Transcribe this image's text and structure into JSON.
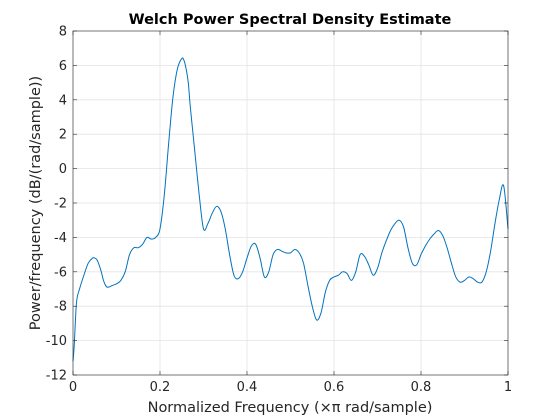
{
  "chart_data": {
    "type": "line",
    "title": "Welch Power Spectral Density Estimate",
    "xlabel": "Normalized Frequency  (×π rad/sample)",
    "ylabel": "Power/frequency (dB/(rad/sample))",
    "xlim": [
      0,
      1
    ],
    "ylim": [
      -12,
      8
    ],
    "xticks": [
      0,
      0.2,
      0.4,
      0.6,
      0.8,
      1
    ],
    "yticks": [
      -12,
      -10,
      -8,
      -6,
      -4,
      -2,
      0,
      2,
      4,
      6,
      8
    ],
    "xtick_labels": [
      "0",
      "0.2",
      "0.4",
      "0.6",
      "0.8",
      "1"
    ],
    "ytick_labels": [
      "-12",
      "-10",
      "-8",
      "-6",
      "-4",
      "-2",
      "0",
      "2",
      "4",
      "6",
      "8"
    ],
    "grid": true,
    "line_color": "#0072bd",
    "series": [
      {
        "x": [
          0,
          0.003,
          0.008,
          0.015,
          0.025,
          0.035,
          0.045,
          0.05,
          0.055,
          0.06,
          0.065,
          0.07,
          0.075,
          0.08,
          0.09,
          0.1,
          0.11,
          0.12,
          0.13,
          0.14,
          0.15,
          0.16,
          0.17,
          0.18,
          0.19,
          0.2,
          0.21,
          0.22,
          0.23,
          0.24,
          0.25,
          0.255,
          0.26,
          0.265,
          0.27,
          0.28,
          0.29,
          0.3,
          0.31,
          0.32,
          0.33,
          0.34,
          0.35,
          0.36,
          0.37,
          0.38,
          0.39,
          0.4,
          0.41,
          0.42,
          0.43,
          0.44,
          0.45,
          0.46,
          0.47,
          0.48,
          0.49,
          0.5,
          0.51,
          0.52,
          0.53,
          0.54,
          0.55,
          0.56,
          0.57,
          0.58,
          0.59,
          0.6,
          0.61,
          0.62,
          0.63,
          0.64,
          0.65,
          0.66,
          0.67,
          0.68,
          0.69,
          0.7,
          0.71,
          0.72,
          0.73,
          0.74,
          0.75,
          0.76,
          0.77,
          0.78,
          0.79,
          0.8,
          0.81,
          0.82,
          0.83,
          0.84,
          0.85,
          0.86,
          0.87,
          0.88,
          0.89,
          0.9,
          0.91,
          0.92,
          0.93,
          0.94,
          0.95,
          0.96,
          0.97,
          0.98,
          0.99,
          1
        ],
        "y": [
          -11.2,
          -10.2,
          -7.8,
          -7.0,
          -6.2,
          -5.5,
          -5.2,
          -5.2,
          -5.3,
          -5.6,
          -6.0,
          -6.5,
          -6.8,
          -6.9,
          -6.8,
          -6.7,
          -6.5,
          -6.0,
          -5.0,
          -4.6,
          -4.6,
          -4.4,
          -4.0,
          -4.1,
          -4.0,
          -3.5,
          -1.5,
          1.5,
          4.2,
          5.8,
          6.4,
          6.3,
          5.8,
          5.0,
          3.5,
          1.0,
          -1.5,
          -3.5,
          -3.2,
          -2.6,
          -2.2,
          -2.5,
          -3.5,
          -5.0,
          -6.2,
          -6.4,
          -6.0,
          -5.2,
          -4.5,
          -4.4,
          -5.2,
          -6.3,
          -6.0,
          -5.0,
          -4.7,
          -4.8,
          -4.9,
          -4.9,
          -4.7,
          -4.9,
          -5.5,
          -6.8,
          -8.0,
          -8.8,
          -8.4,
          -7.2,
          -6.5,
          -6.3,
          -6.2,
          -6.0,
          -6.1,
          -6.5,
          -6.0,
          -5.0,
          -5.1,
          -5.6,
          -6.2,
          -5.8,
          -4.9,
          -4.2,
          -3.6,
          -3.2,
          -3.0,
          -3.4,
          -4.6,
          -5.5,
          -5.6,
          -5.0,
          -4.5,
          -4.1,
          -3.8,
          -3.6,
          -3.9,
          -4.6,
          -5.5,
          -6.3,
          -6.6,
          -6.5,
          -6.3,
          -6.4,
          -6.6,
          -6.6,
          -6.0,
          -4.8,
          -3.2,
          -1.8,
          -1.0,
          -3.5
        ]
      }
    ]
  }
}
